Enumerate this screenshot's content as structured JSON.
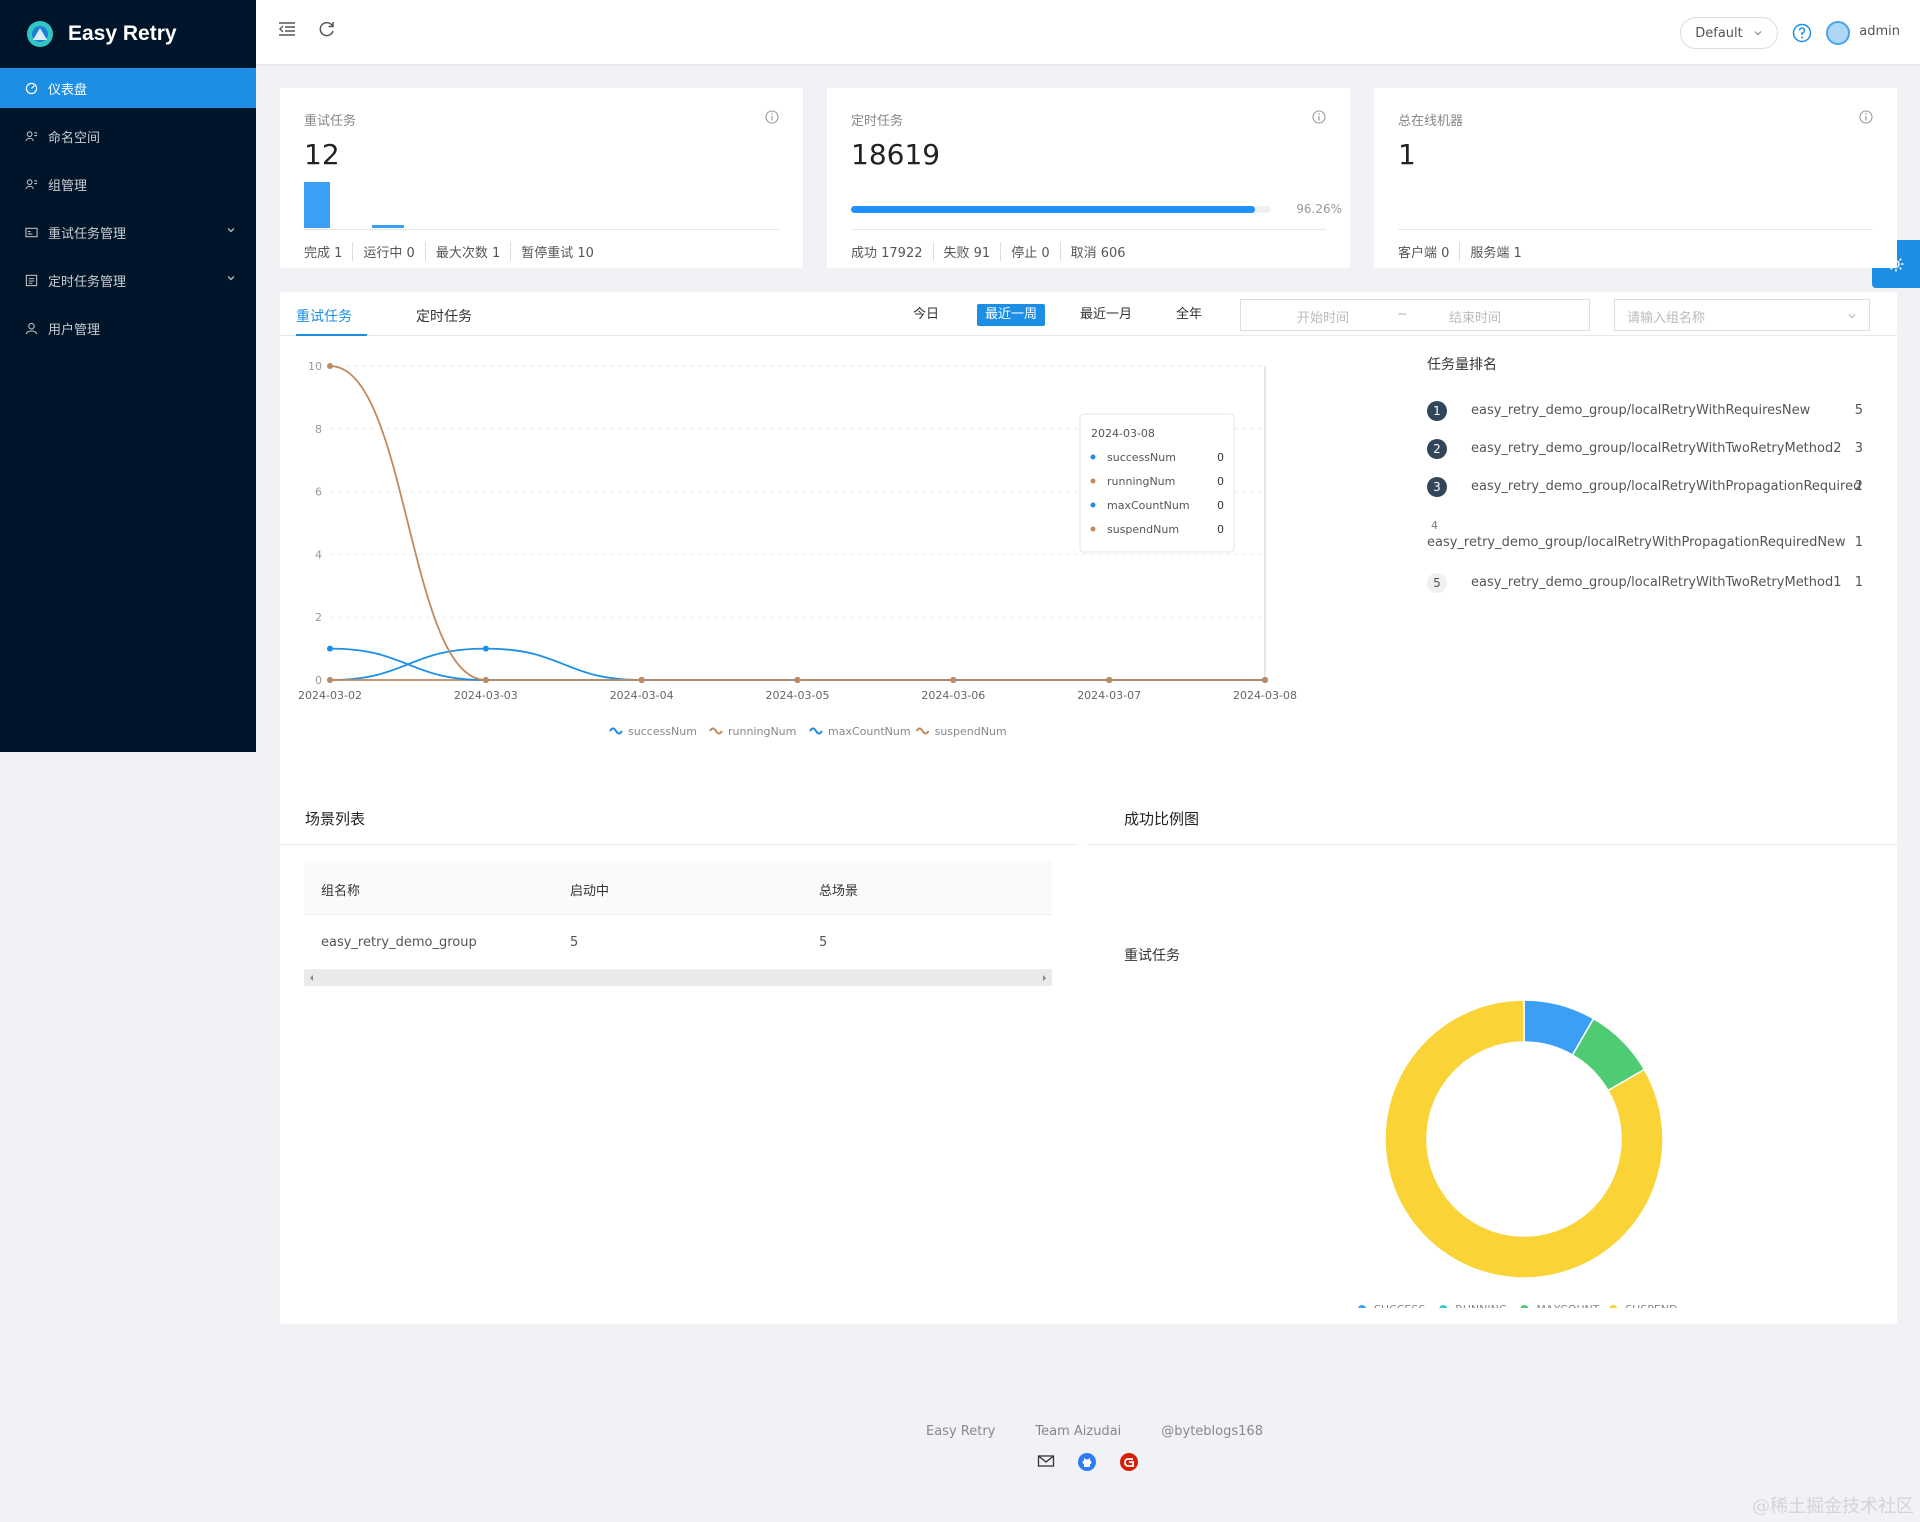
{
  "app": {
    "title": "Easy Retry"
  },
  "sidebar": {
    "items": [
      {
        "label": "仪表盘",
        "icon": "dashboard-icon",
        "active": true
      },
      {
        "label": "命名空间",
        "icon": "namespace-icon"
      },
      {
        "label": "组管理",
        "icon": "group-icon"
      },
      {
        "label": "重试任务管理",
        "icon": "retry-task-icon",
        "expandable": true
      },
      {
        "label": "定时任务管理",
        "icon": "scheduled-task-icon",
        "expandable": true
      },
      {
        "label": "用户管理",
        "icon": "user-icon"
      }
    ]
  },
  "header": {
    "env": "Default",
    "user": "admin"
  },
  "stats": {
    "retry": {
      "title": "重试任务",
      "value": "12",
      "footer": [
        "完成 1",
        "运行中 0",
        "最大次数 1",
        "暂停重试 10"
      ],
      "mini_bars": [
        1,
        0
      ]
    },
    "job": {
      "title": "定时任务",
      "value": "18619",
      "progress": 0.9626,
      "progress_label": "96.26%",
      "footer": [
        "成功 17922",
        "失败 91",
        "停止 0",
        "取消 606"
      ]
    },
    "online": {
      "title": "总在线机器",
      "value": "1",
      "footer": [
        "客户端 0",
        "服务端 1"
      ]
    }
  },
  "tabs": [
    {
      "label": "重试任务",
      "active": true
    },
    {
      "label": "定时任务"
    }
  ],
  "ranges": [
    {
      "label": "今日"
    },
    {
      "label": "最近一周",
      "active": true
    },
    {
      "label": "最近一月"
    },
    {
      "label": "全年"
    }
  ],
  "date_range": {
    "start_placeholder": "开始时间",
    "sep": "~",
    "end_placeholder": "结束时间"
  },
  "group_select": {
    "placeholder": "请输入组名称"
  },
  "chart_data": [
    {
      "type": "line",
      "x": [
        "2024-03-02",
        "2024-03-03",
        "2024-03-04",
        "2024-03-05",
        "2024-03-06",
        "2024-03-07",
        "2024-03-08"
      ],
      "ylim": [
        0,
        10
      ],
      "yticks": [
        0,
        2,
        4,
        6,
        8,
        10
      ],
      "series": [
        {
          "name": "successNum",
          "color": "#1c8fe5",
          "values": [
            0,
            1,
            0,
            0,
            0,
            0,
            0
          ]
        },
        {
          "name": "runningNum",
          "color": "#c08a60",
          "values": [
            0,
            0,
            0,
            0,
            0,
            0,
            0
          ]
        },
        {
          "name": "maxCountNum",
          "color": "#1c8fe5",
          "values": [
            1,
            0,
            0,
            0,
            0,
            0,
            0
          ]
        },
        {
          "name": "suspendNum",
          "color": "#c08a60",
          "values": [
            10,
            0,
            0,
            0,
            0,
            0,
            0
          ]
        }
      ],
      "legend": "bottom",
      "tooltip": {
        "title": "2024-03-08",
        "rows": [
          {
            "name": "successNum",
            "value": "0"
          },
          {
            "name": "runningNum",
            "value": "0"
          },
          {
            "name": "maxCountNum",
            "value": "0"
          },
          {
            "name": "suspendNum",
            "value": "0"
          }
        ]
      }
    },
    {
      "type": "pie",
      "title": "重试任务",
      "categories": [
        "SUCCESS",
        "RUNNING",
        "MAXCOUNT",
        "SUSPEND"
      ],
      "colors": [
        "#3a9ff5",
        "#36cbcb",
        "#4ecb73",
        "#fad337"
      ],
      "values": [
        1,
        0,
        1,
        10
      ],
      "legend": "bottom"
    }
  ],
  "ranking": {
    "title": "任务量排名",
    "items": [
      {
        "rank": "1",
        "name": "easy_retry_demo_group/localRetryWithRequiresNew",
        "count": "5"
      },
      {
        "rank": "2",
        "name": "easy_retry_demo_group/localRetryWithTwoRetryMethod2",
        "count": "3"
      },
      {
        "rank": "3",
        "name": "easy_retry_demo_group/localRetryWithPropagationRequired",
        "count": "2"
      },
      {
        "rank": "4",
        "name": "easy_retry_demo_group/localRetryWithPropagationRequiredNew",
        "count": "1"
      },
      {
        "rank": "5",
        "name": "easy_retry_demo_group/localRetryWithTwoRetryMethod1",
        "count": "1"
      }
    ]
  },
  "scenes": {
    "title": "场景列表",
    "columns": [
      "组名称",
      "启动中",
      "总场景"
    ],
    "rows": [
      [
        "easy_retry_demo_group",
        "5",
        "5"
      ]
    ]
  },
  "success_ratio": {
    "title": "成功比例图"
  },
  "footer": {
    "links": [
      "Easy Retry",
      "Team Aizudai",
      "@byteblogs168"
    ],
    "icons": [
      "mail-icon",
      "github-icon",
      "gitee-icon"
    ]
  },
  "watermark": "@稀土掘金技术社区"
}
